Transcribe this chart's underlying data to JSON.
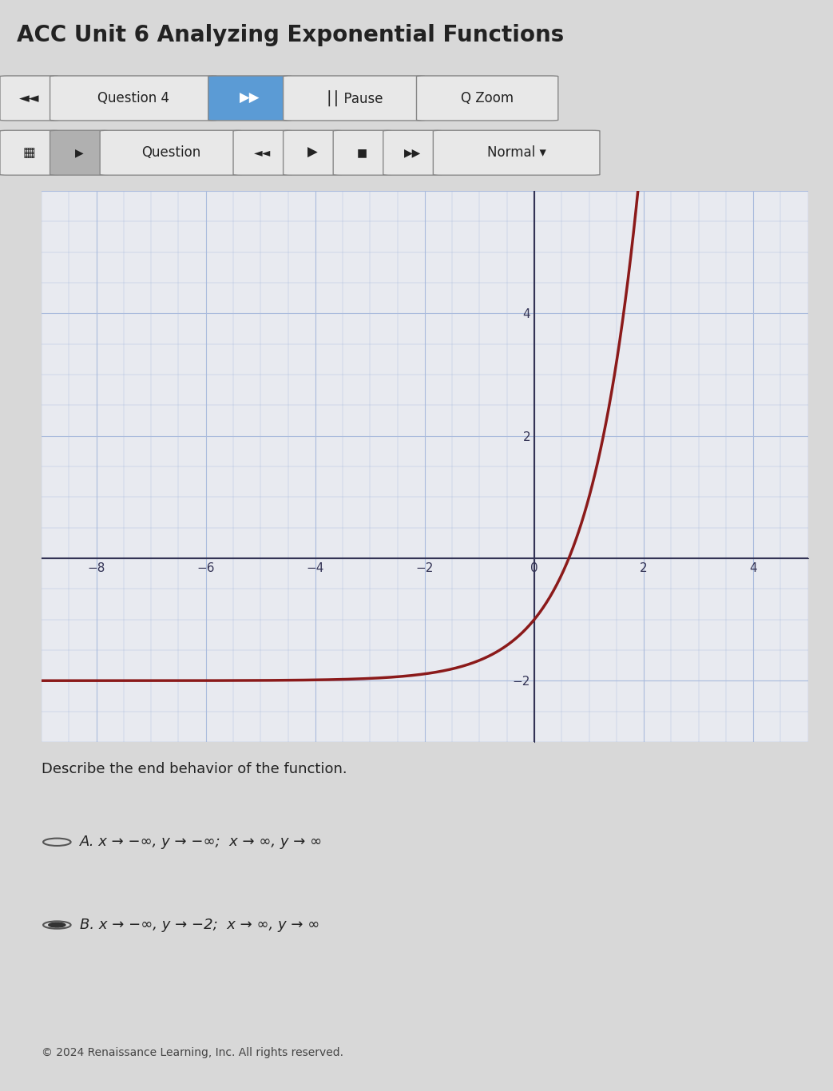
{
  "title": "ACC Unit 6 Analyzing Exponential Functions",
  "title_fontsize": 20,
  "title_color": "#222222",
  "bg_color": "#d8d8d8",
  "toolbar1_bg": "#d0d0d0",
  "toolbar2_bg": "#e0e0e0",
  "graph_bg": "#e8eaf0",
  "graph_grid_color": "#aabbdd",
  "graph_axis_color": "#333355",
  "curve_color": "#8B1A1A",
  "curve_linewidth": 2.5,
  "x_range": [
    -9,
    5
  ],
  "y_range": [
    -3,
    6
  ],
  "x_ticks": [
    -8,
    -6,
    -4,
    -2,
    0,
    2,
    4
  ],
  "y_ticks": [
    -2,
    2,
    4
  ],
  "asymptote_y": -2,
  "question_text": "Describe the end behavior of the function.",
  "option_A": "A. x → −∞, y → −∞;  x → ∞, y → ∞",
  "option_B": "B. x → −∞, y → −2;  x → ∞, y → ∞",
  "option_A_selected": false,
  "option_B_selected": true,
  "footer": "© 2024 Renaissance Learning, Inc. All rights reserved.",
  "button1_text": "Question 4",
  "button2_text": "⎮⎮ Pause",
  "button3_text": "Q Zoom",
  "button4_text": "Question",
  "button5_text": "Normal ▾"
}
